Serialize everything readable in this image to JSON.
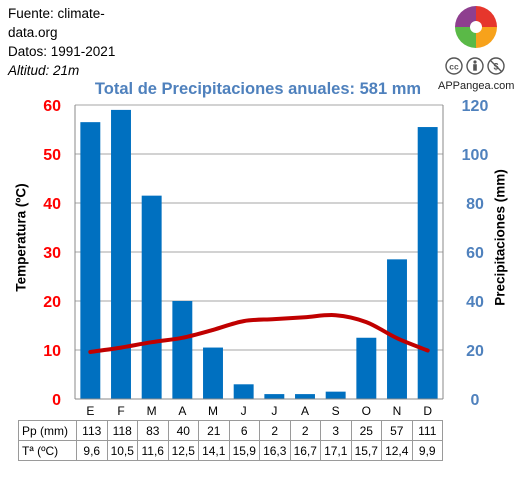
{
  "source": {
    "line1": "Fuente: climate-",
    "line2": "data.org",
    "line3": "Datos: 1991-2021",
    "altitude": "Altitud: 21m"
  },
  "brand": "APPangea.com",
  "icons": [
    "appangea-logo-icon",
    "creative-commons-icon",
    "attribution-icon",
    "noncommercial-icon"
  ],
  "colors": {
    "bars": "#0070c0",
    "temperature_line": "#c00000",
    "left_axis": "#ff0000",
    "right_axis": "#4f81bd",
    "title": "#4f81bd"
  },
  "table": {
    "months": [
      "E",
      "F",
      "M",
      "A",
      "M",
      "J",
      "J",
      "A",
      "S",
      "O",
      "N",
      "D"
    ],
    "rows": [
      {
        "label": "Pp (mm)",
        "values": [
          "113",
          "118",
          "83",
          "40",
          "21",
          "6",
          "2",
          "2",
          "3",
          "25",
          "57",
          "111"
        ]
      },
      {
        "label": "Tª (ºC)",
        "values": [
          "9,6",
          "10,5",
          "11,6",
          "12,5",
          "14,1",
          "15,9",
          "16,3",
          "16,7",
          "17,1",
          "15,7",
          "12,4",
          "9,9"
        ]
      }
    ]
  },
  "chart_data": {
    "type": "bar",
    "title": "Total de Precipitaciones anuales: 581 mm",
    "categories": [
      "E",
      "F",
      "M",
      "A",
      "M",
      "J",
      "J",
      "A",
      "S",
      "O",
      "N",
      "D"
    ],
    "ylabel_left": "Temperatura (ºC)",
    "ylabel_right": "Precipitaciones (mm)",
    "ylim_left": [
      0,
      60
    ],
    "ylim_right": [
      0,
      120
    ],
    "yticks_left": [
      "0",
      "10",
      "20",
      "30",
      "40",
      "50",
      "60"
    ],
    "yticks_right": [
      "0",
      "20",
      "40",
      "60",
      "80",
      "100",
      "120"
    ],
    "grid": true,
    "series": [
      {
        "name": "Pp (mm)",
        "type": "bar",
        "axis": "right",
        "values": [
          113,
          118,
          83,
          40,
          21,
          6,
          2,
          2,
          3,
          25,
          57,
          111
        ]
      },
      {
        "name": "Tª (ºC)",
        "type": "line",
        "axis": "left",
        "values": [
          9.6,
          10.5,
          11.6,
          12.5,
          14.1,
          15.9,
          16.3,
          16.7,
          17.1,
          15.7,
          12.4,
          9.9
        ]
      }
    ]
  }
}
